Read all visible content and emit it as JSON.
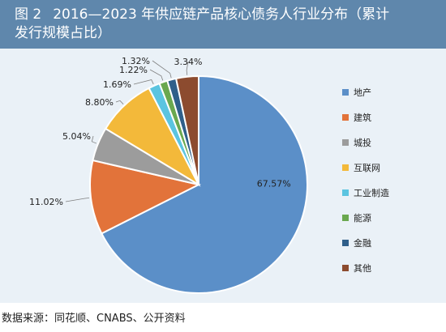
{
  "figure": {
    "number": "图 2",
    "title_line1": "2016—2023 年供应链产品核心债务人行业分布（累计",
    "title_line2": "发行规模占比）",
    "source": "数据来源：同花顺、CNABS、公开资料"
  },
  "chart_data": {
    "type": "pie",
    "title": "2016—2023 年供应链产品核心债务人行业分布（累计发行规模占比）",
    "unit": "%",
    "legend_position": "right",
    "slices": [
      {
        "name": "地产",
        "value": 67.57,
        "label": "67.57%",
        "color": "#5b8fc8"
      },
      {
        "name": "建筑",
        "value": 11.02,
        "label": "11.02%",
        "color": "#e2733a"
      },
      {
        "name": "城投",
        "value": 5.04,
        "label": "5.04%",
        "color": "#9c9c9c"
      },
      {
        "name": "互联网",
        "value": 8.8,
        "label": "8.80%",
        "color": "#f3b93a"
      },
      {
        "name": "工业制造",
        "value": 1.69,
        "label": "1.69%",
        "color": "#5bc4e0"
      },
      {
        "name": "能源",
        "value": 1.22,
        "label": "1.22%",
        "color": "#6aa84f"
      },
      {
        "name": "金融",
        "value": 1.32,
        "label": "1.32%",
        "color": "#2f5f8a"
      },
      {
        "name": "其他",
        "value": 3.34,
        "label": "3.34%",
        "color": "#8c4b2f"
      }
    ]
  }
}
